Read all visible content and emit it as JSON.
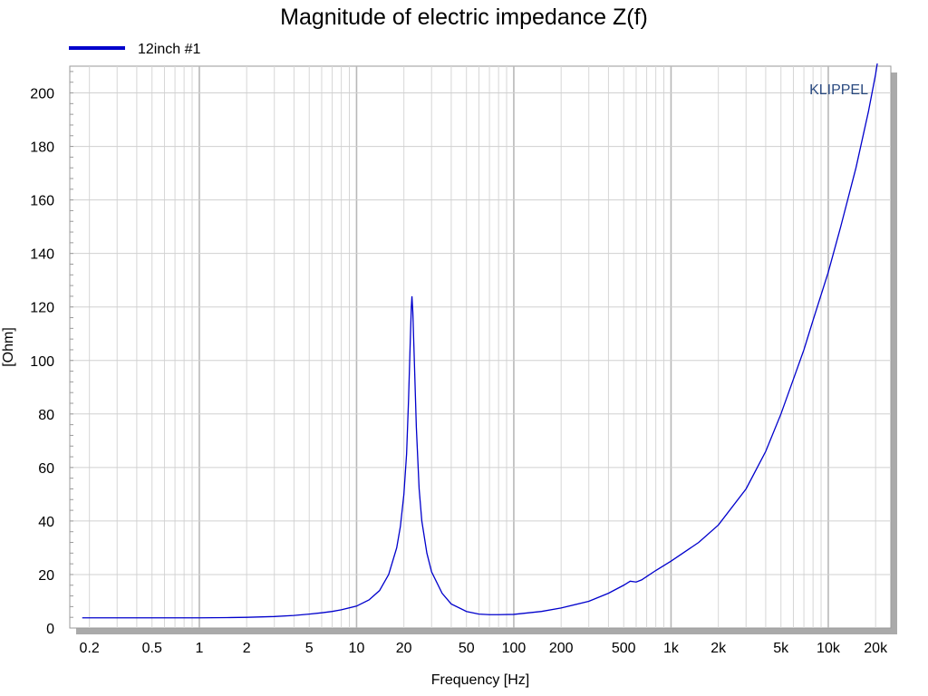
{
  "chart_data": {
    "type": "line",
    "title": "Magnitude of electric impedance Z(f)",
    "xlabel": "Frequency [Hz]",
    "ylabel": "[Ohm]",
    "xscale": "log",
    "xlim": [
      0.15,
      25000
    ],
    "ylim": [
      0,
      210
    ],
    "grid": true,
    "legend_position": "top-left",
    "watermark": "KLIPPEL",
    "x_ticks": [
      {
        "value": 0.2,
        "label": "0.2"
      },
      {
        "value": 0.5,
        "label": "0.5"
      },
      {
        "value": 1,
        "label": "1"
      },
      {
        "value": 2,
        "label": "2"
      },
      {
        "value": 5,
        "label": "5"
      },
      {
        "value": 10,
        "label": "10"
      },
      {
        "value": 20,
        "label": "20"
      },
      {
        "value": 50,
        "label": "50"
      },
      {
        "value": 100,
        "label": "100"
      },
      {
        "value": 200,
        "label": "200"
      },
      {
        "value": 500,
        "label": "500"
      },
      {
        "value": 1000,
        "label": "1k"
      },
      {
        "value": 2000,
        "label": "2k"
      },
      {
        "value": 5000,
        "label": "5k"
      },
      {
        "value": 10000,
        "label": "10k"
      },
      {
        "value": 20000,
        "label": "20k"
      }
    ],
    "y_ticks": [
      0,
      20,
      40,
      60,
      80,
      100,
      120,
      140,
      160,
      180,
      200
    ],
    "series": [
      {
        "name": "12inch #1",
        "color": "#0000cc",
        "points": [
          [
            0.18,
            3.8
          ],
          [
            0.3,
            3.8
          ],
          [
            0.5,
            3.8
          ],
          [
            0.8,
            3.8
          ],
          [
            1,
            3.8
          ],
          [
            1.5,
            3.9
          ],
          [
            2,
            4.0
          ],
          [
            3,
            4.3
          ],
          [
            4,
            4.7
          ],
          [
            5,
            5.2
          ],
          [
            6,
            5.7
          ],
          [
            7,
            6.2
          ],
          [
            8,
            6.8
          ],
          [
            10,
            8.2
          ],
          [
            12,
            10.5
          ],
          [
            14,
            14
          ],
          [
            16,
            20
          ],
          [
            18,
            30
          ],
          [
            19,
            38
          ],
          [
            20,
            50
          ],
          [
            20.8,
            65
          ],
          [
            21.4,
            85
          ],
          [
            21.9,
            105
          ],
          [
            22.3,
            120
          ],
          [
            22.5,
            124
          ],
          [
            22.8,
            118
          ],
          [
            23.3,
            100
          ],
          [
            24,
            75
          ],
          [
            25,
            52
          ],
          [
            26,
            40
          ],
          [
            28,
            28
          ],
          [
            30,
            21
          ],
          [
            35,
            13
          ],
          [
            40,
            9
          ],
          [
            50,
            6.2
          ],
          [
            60,
            5.2
          ],
          [
            70,
            5.0
          ],
          [
            80,
            5.0
          ],
          [
            100,
            5.1
          ],
          [
            150,
            6.2
          ],
          [
            200,
            7.5
          ],
          [
            300,
            10
          ],
          [
            400,
            13
          ],
          [
            500,
            16
          ],
          [
            550,
            17.5
          ],
          [
            600,
            17.2
          ],
          [
            650,
            18
          ],
          [
            800,
            21.5
          ],
          [
            1000,
            25
          ],
          [
            1500,
            32
          ],
          [
            2000,
            38.5
          ],
          [
            3000,
            52
          ],
          [
            4000,
            66
          ],
          [
            5000,
            80
          ],
          [
            6000,
            93
          ],
          [
            7000,
            104
          ],
          [
            8000,
            115
          ],
          [
            10000,
            133
          ],
          [
            12000,
            150
          ],
          [
            15000,
            172
          ],
          [
            18000,
            193
          ],
          [
            20000,
            207
          ],
          [
            20500,
            211
          ]
        ]
      }
    ]
  }
}
